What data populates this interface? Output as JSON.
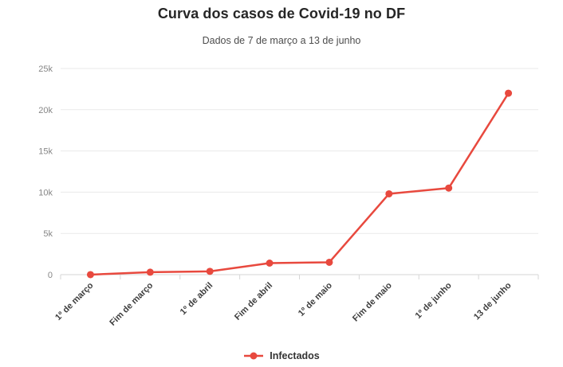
{
  "header": {
    "title": "Curva dos casos de Covid-19 no DF",
    "subtitle": "Dados de 7 de março a 13 de junho"
  },
  "chart_data": {
    "type": "line",
    "title": "Curva dos casos de Covid-19 no DF",
    "subtitle": "Dados de 7 de março a 13 de junho",
    "categories": [
      "1º de março",
      "Fim de março",
      "1º de abril",
      "Fim de abril",
      "1º de maio",
      "Fim de maio",
      "1º de junho",
      "13 de junho"
    ],
    "series": [
      {
        "name": "Infectados",
        "color": "#e8493e",
        "values": [
          1,
          300,
          400,
          1400,
          1500,
          9800,
          10500,
          22000
        ]
      }
    ],
    "xlabel": "",
    "ylabel": "",
    "ylim": [
      0,
      25000
    ],
    "ytick_values": [
      0,
      5000,
      10000,
      15000,
      20000,
      25000
    ],
    "ytick_labels": [
      "0",
      "5k",
      "10k",
      "15k",
      "20k",
      "25k"
    ],
    "grid": "horizontal",
    "legend_position": "bottom"
  },
  "legend": {
    "items": [
      {
        "label": "Infectados",
        "color": "#e8493e"
      }
    ]
  },
  "colors": {
    "series_red": "#e8493e",
    "grid_line": "#eaeaea",
    "axis_line": "#d6d6d6",
    "y_label": "#868686",
    "x_label": "#3d3d3d",
    "title": "#262626",
    "subtitle": "#4d4d4d",
    "legend_text": "#333333",
    "background": "#ffffff"
  }
}
